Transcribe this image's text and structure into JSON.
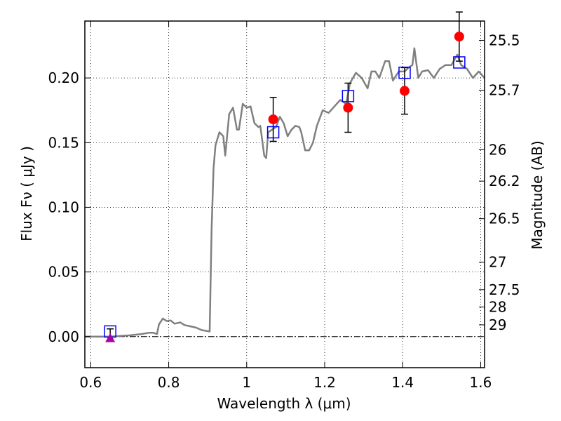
{
  "chart_data": {
    "type": "scatter",
    "xlabel": "Wavelength  λ (μm)",
    "ylabel": "Flux  Fν  ( μJy )",
    "ylabel_right": "Magnitude (AB)",
    "xlim": [
      0.585,
      1.61
    ],
    "ylim": [
      -0.024,
      0.244
    ],
    "grid": true,
    "x_ticks": [
      {
        "value": 0.6,
        "label": "0.6"
      },
      {
        "value": 0.8,
        "label": "0.8"
      },
      {
        "value": 1.0,
        "label": "1"
      },
      {
        "value": 1.2,
        "label": "1.2"
      },
      {
        "value": 1.4,
        "label": "1.4"
      },
      {
        "value": 1.6,
        "label": "1.6"
      }
    ],
    "y_ticks": [
      {
        "value": 0.0,
        "label": "0.00"
      },
      {
        "value": 0.05,
        "label": "0.05"
      },
      {
        "value": 0.1,
        "label": "0.10"
      },
      {
        "value": 0.15,
        "label": "0.15"
      },
      {
        "value": 0.2,
        "label": "0.20"
      }
    ],
    "mag_ticks": [
      {
        "value": 25.5,
        "label": "25.5"
      },
      {
        "value": 25.7,
        "label": "25.7"
      },
      {
        "value": 26.0,
        "label": "26"
      },
      {
        "value": 26.2,
        "label": "26.2"
      },
      {
        "value": 26.5,
        "label": "26.5"
      },
      {
        "value": 27.0,
        "label": "27"
      },
      {
        "value": 27.5,
        "label": "27.5"
      },
      {
        "value": 28.0,
        "label": "28"
      },
      {
        "value": 29.0,
        "label": "29"
      }
    ],
    "series": [
      {
        "kind": "model-spectrum",
        "color": "#808080",
        "points": [
          [
            0.585,
            0.0
          ],
          [
            0.65,
            0.0
          ],
          [
            0.7,
            0.001
          ],
          [
            0.73,
            0.002
          ],
          [
            0.75,
            0.003
          ],
          [
            0.76,
            0.003
          ],
          [
            0.77,
            0.002
          ],
          [
            0.775,
            0.0095
          ],
          [
            0.785,
            0.014
          ],
          [
            0.795,
            0.012
          ],
          [
            0.805,
            0.0125
          ],
          [
            0.815,
            0.01
          ],
          [
            0.83,
            0.011
          ],
          [
            0.84,
            0.009
          ],
          [
            0.855,
            0.008
          ],
          [
            0.87,
            0.007
          ],
          [
            0.885,
            0.005
          ],
          [
            0.905,
            0.004
          ],
          [
            0.91,
            0.082
          ],
          [
            0.915,
            0.13
          ],
          [
            0.92,
            0.148
          ],
          [
            0.93,
            0.158
          ],
          [
            0.94,
            0.155
          ],
          [
            0.945,
            0.14
          ],
          [
            0.955,
            0.172
          ],
          [
            0.965,
            0.177
          ],
          [
            0.975,
            0.16
          ],
          [
            0.98,
            0.16
          ],
          [
            0.99,
            0.18
          ],
          [
            1.0,
            0.177
          ],
          [
            1.01,
            0.178
          ],
          [
            1.02,
            0.165
          ],
          [
            1.03,
            0.162
          ],
          [
            1.035,
            0.163
          ],
          [
            1.045,
            0.14
          ],
          [
            1.05,
            0.138
          ],
          [
            1.055,
            0.158
          ],
          [
            1.065,
            0.16
          ],
          [
            1.075,
            0.162
          ],
          [
            1.085,
            0.17
          ],
          [
            1.095,
            0.165
          ],
          [
            1.105,
            0.155
          ],
          [
            1.115,
            0.16
          ],
          [
            1.125,
            0.163
          ],
          [
            1.135,
            0.162
          ],
          [
            1.14,
            0.158
          ],
          [
            1.15,
            0.144
          ],
          [
            1.16,
            0.144
          ],
          [
            1.17,
            0.15
          ],
          [
            1.18,
            0.163
          ],
          [
            1.195,
            0.175
          ],
          [
            1.21,
            0.173
          ],
          [
            1.225,
            0.178
          ],
          [
            1.24,
            0.183
          ],
          [
            1.255,
            0.18
          ],
          [
            1.265,
            0.196
          ],
          [
            1.28,
            0.204
          ],
          [
            1.295,
            0.2
          ],
          [
            1.31,
            0.192
          ],
          [
            1.32,
            0.205
          ],
          [
            1.33,
            0.205
          ],
          [
            1.34,
            0.2
          ],
          [
            1.355,
            0.213
          ],
          [
            1.365,
            0.213
          ],
          [
            1.375,
            0.198
          ],
          [
            1.39,
            0.205
          ],
          [
            1.405,
            0.205
          ],
          [
            1.415,
            0.208
          ],
          [
            1.425,
            0.21
          ],
          [
            1.43,
            0.223
          ],
          [
            1.44,
            0.2
          ],
          [
            1.45,
            0.205
          ],
          [
            1.465,
            0.206
          ],
          [
            1.48,
            0.2
          ],
          [
            1.495,
            0.207
          ],
          [
            1.51,
            0.21
          ],
          [
            1.525,
            0.21
          ],
          [
            1.54,
            0.218
          ],
          [
            1.55,
            0.21
          ],
          [
            1.565,
            0.207
          ],
          [
            1.58,
            0.2
          ],
          [
            1.595,
            0.205
          ],
          [
            1.61,
            0.2
          ]
        ]
      },
      {
        "kind": "observed-photometry",
        "color": "#ff0000",
        "points": [
          {
            "x": 1.068,
            "y": 0.168,
            "yerr": 0.017
          },
          {
            "x": 1.26,
            "y": 0.177,
            "yerr": 0.019
          },
          {
            "x": 1.405,
            "y": 0.19,
            "yerr": 0.018
          },
          {
            "x": 1.545,
            "y": 0.232,
            "yerr": 0.019
          }
        ]
      },
      {
        "kind": "model-photometry",
        "color": "#0000ff",
        "points": [
          {
            "x": 0.65,
            "y": 0.004
          },
          {
            "x": 1.068,
            "y": 0.158
          },
          {
            "x": 1.26,
            "y": 0.186
          },
          {
            "x": 1.405,
            "y": 0.204
          },
          {
            "x": 1.545,
            "y": 0.212
          }
        ]
      },
      {
        "kind": "upper-limit",
        "color": "#aa00aa",
        "points": [
          {
            "x": 0.65,
            "y": -0.001,
            "yerr": 0.007
          }
        ]
      }
    ]
  }
}
